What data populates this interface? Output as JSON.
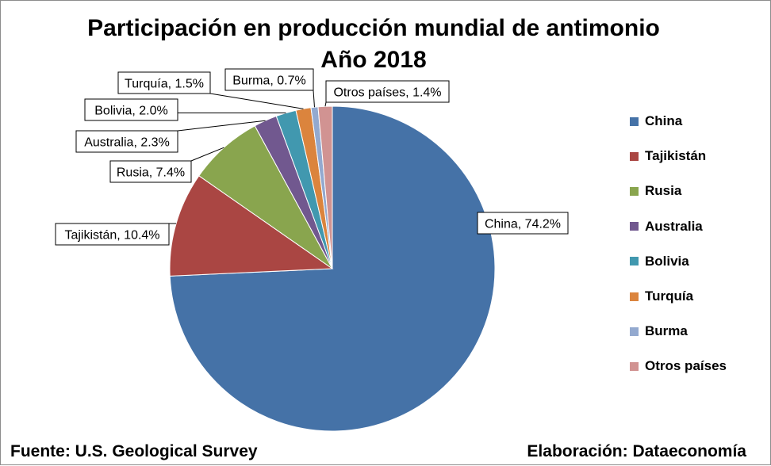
{
  "title_line1": "Participación en producción mundial de antimonio",
  "title_line2": "Año 2018",
  "source": "Fuente: U.S. Geological Survey",
  "credit": "Elaboración: Dataeconomía",
  "chart_data": {
    "type": "pie",
    "title": "Participación en producción mundial de antimonio Año 2018",
    "categories": [
      "China",
      "Tajikistán",
      "Rusia",
      "Australia",
      "Bolivia",
      "Turquía",
      "Burma",
      "Otros países"
    ],
    "values": [
      74.2,
      10.4,
      7.4,
      2.3,
      2.0,
      1.5,
      0.7,
      1.4
    ],
    "data_labels": [
      "China, 74.2%",
      "Tajikistán, 10.4%",
      "Rusia, 7.4%",
      "Australia, 2.3%",
      "Bolivia, 2.0%",
      "Turquía, 1.5%",
      "Burma, 0.7%",
      "Otros países, 1.4%"
    ],
    "colors": [
      "#4572a7",
      "#aa4643",
      "#89a54e",
      "#71588f",
      "#4198af",
      "#db843d",
      "#93a9cf",
      "#d19392"
    ],
    "legend": "right"
  }
}
